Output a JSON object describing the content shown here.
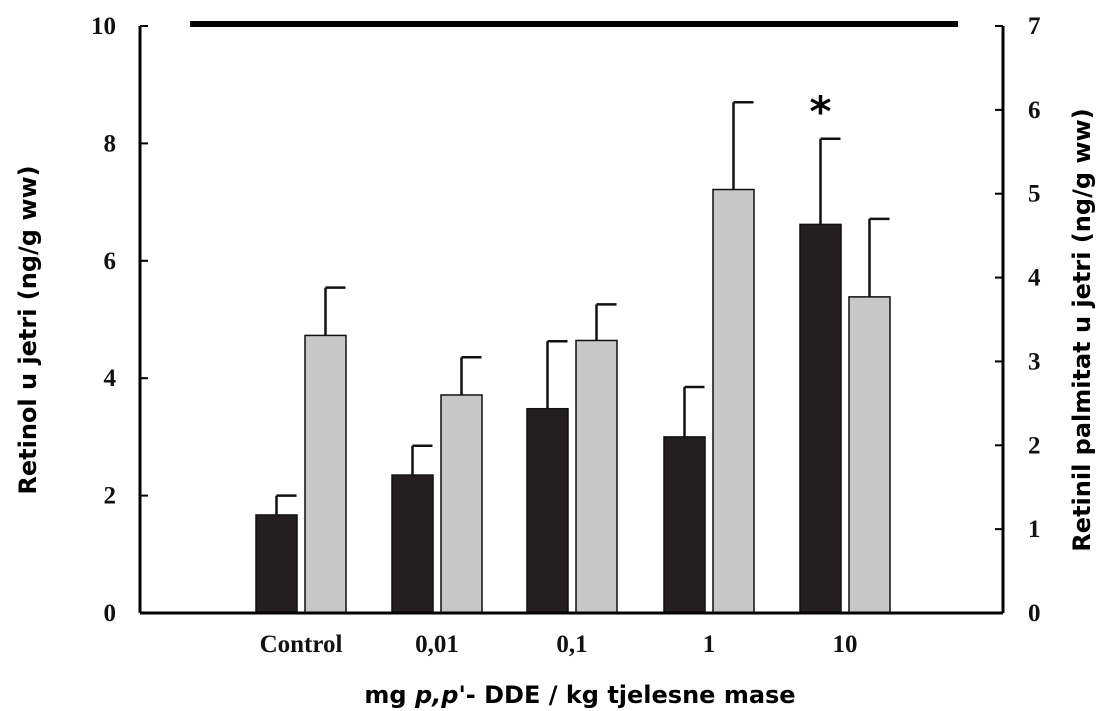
{
  "chart_data": {
    "type": "bar",
    "xlabel_parts": [
      {
        "text": "mg ",
        "italic": false
      },
      {
        "text": "p,p",
        "italic": true
      },
      {
        "text": "'- DDE / kg tjelesne mase",
        "italic": false
      }
    ],
    "ylabel_left": "Retinol u jetri (ng/g ww)",
    "ylabel_right": "Retinil palmitat u jetri (ng/g ww)",
    "categories": [
      "Control",
      "0,01",
      "0,1",
      "1",
      "10"
    ],
    "ylim_left": [
      0,
      10
    ],
    "yticks_left": [
      0,
      2,
      4,
      6,
      8,
      10
    ],
    "ylim_right": [
      0,
      7
    ],
    "yticks_right": [
      0,
      1,
      2,
      3,
      4,
      5,
      6,
      7
    ],
    "series": [
      {
        "axis": "left",
        "color": "#231f20",
        "values": [
          1.67,
          2.35,
          3.48,
          3.0,
          6.62
        ],
        "errors": [
          0.33,
          0.5,
          1.15,
          0.85,
          1.46
        ]
      },
      {
        "axis": "right",
        "color": "#c8c8c8",
        "values": [
          3.31,
          2.6,
          3.25,
          5.05,
          3.77
        ],
        "errors": [
          0.57,
          0.45,
          0.43,
          1.04,
          0.93
        ]
      }
    ],
    "annotations": [
      {
        "text": "*",
        "category": "10"
      }
    ],
    "grid": false
  }
}
